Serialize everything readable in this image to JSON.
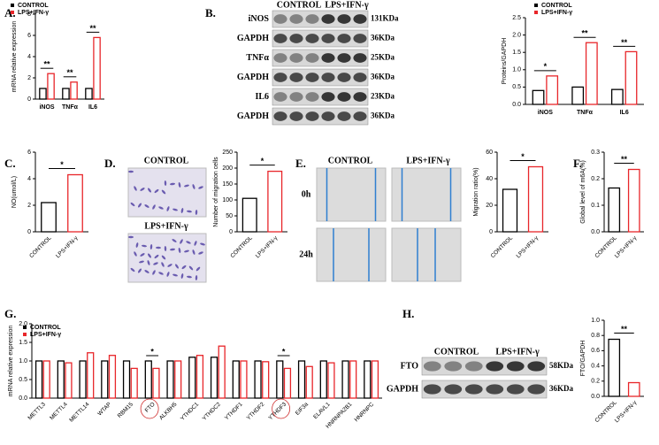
{
  "panel_labels": [
    "A.",
    "B.",
    "C.",
    "D.",
    "E.",
    "F.",
    "G.",
    "H."
  ],
  "blot_b": {
    "groups": [
      "CONTROL",
      "LPS+IFN-γ"
    ],
    "rows": [
      {
        "label": "iNOS",
        "size": "131KDa"
      },
      {
        "label": "GAPDH",
        "size": "36KDa"
      },
      {
        "label": "TNFα",
        "size": "25KDa"
      },
      {
        "label": "GAPDH",
        "size": "36KDa"
      },
      {
        "label": "IL6",
        "size": "23KDa"
      },
      {
        "label": "GAPDH",
        "size": "36KDa"
      }
    ]
  },
  "blot_h": {
    "groups": [
      "CONTROL",
      "LPS+IFN-γ"
    ],
    "rows": [
      {
        "label": "FTO",
        "size": "58KDa"
      },
      {
        "label": "GAPDH",
        "size": "36KDa"
      }
    ]
  },
  "images_d": {
    "rows": [
      "CONTROL",
      "LPS+IFN-γ"
    ]
  },
  "images_e": {
    "columns": [
      "CONTROL",
      "LPS+IFN-γ"
    ],
    "rows": [
      "0h",
      "24h"
    ]
  },
  "chart_data": [
    {
      "type": "bar",
      "y_label": "mRNA relative expression",
      "categories": [
        "iNOS",
        "TNFα",
        "IL6"
      ],
      "series": [
        {
          "name": "CONTROL",
          "color": "#000000",
          "values": [
            1,
            1,
            1
          ]
        },
        {
          "name": "LPS+IFN-γ",
          "color": "#e8262a",
          "values": [
            2.4,
            1.6,
            5.8
          ]
        }
      ],
      "significance": [
        "**",
        "**",
        "**"
      ],
      "ylim": [
        0,
        8
      ],
      "yticks": [
        0,
        2,
        4,
        6,
        8
      ]
    },
    {
      "type": "bar",
      "y_label": "Proteins/GAPDH",
      "categories": [
        "iNOS",
        "TNFα",
        "IL6"
      ],
      "series": [
        {
          "name": "CONTROL",
          "color": "#000000",
          "values": [
            0.4,
            0.5,
            0.43
          ]
        },
        {
          "name": "LPS+IFN-γ",
          "color": "#e8262a",
          "values": [
            0.82,
            1.78,
            1.52
          ]
        }
      ],
      "significance": [
        "*",
        "**",
        "**"
      ],
      "ylim": [
        0,
        2.5
      ],
      "yticks": [
        {
          "value": 0,
          "label": "0.0"
        },
        0.5,
        {
          "value": 1,
          "label": "1.0"
        },
        1.5,
        {
          "value": 2,
          "label": "2.0"
        },
        2.5
      ]
    },
    {
      "type": "bar",
      "y_label": "NO(umol/L)",
      "categories": [
        "CONTROL",
        "LPS+IFN-γ"
      ],
      "colors": [
        "#000000",
        "#e8262a"
      ],
      "values": [
        2.2,
        4.3
      ],
      "significance": "*",
      "ylim": [
        0,
        6
      ],
      "yticks": [
        0,
        2,
        4,
        6
      ]
    },
    {
      "type": "bar",
      "y_label": "Number of migration cells",
      "categories": [
        "CONTROL",
        "LPS+IFN-γ"
      ],
      "colors": [
        "#000000",
        "#e8262a"
      ],
      "values": [
        105,
        190
      ],
      "significance": "*",
      "ylim": [
        0,
        250
      ],
      "yticks": [
        0,
        50,
        100,
        150,
        200,
        250
      ]
    },
    {
      "type": "bar",
      "y_label": "Migration ratio(%)",
      "categories": [
        "CONTROL",
        "LPS+IFN-γ"
      ],
      "colors": [
        "#000000",
        "#e8262a"
      ],
      "values": [
        32,
        49
      ],
      "significance": "*",
      "ylim": [
        0,
        60
      ],
      "yticks": [
        0,
        20,
        40,
        60
      ]
    },
    {
      "type": "bar",
      "y_label": "Global level of m6A(%)",
      "categories": [
        "CONTROL",
        "LPS+IFN-γ"
      ],
      "colors": [
        "#000000",
        "#e8262a"
      ],
      "values": [
        0.165,
        0.235
      ],
      "significance": "**",
      "ylim": [
        0,
        0.3
      ],
      "yticks": [
        {
          "value": 0,
          "label": "0.0"
        },
        0.1,
        0.2,
        0.3
      ]
    },
    {
      "type": "bar",
      "y_label": "mRNA relative expression",
      "categories": [
        "METTL3",
        "METTL4",
        "METTL14",
        "WTAP",
        "RBM15",
        "FTO",
        "ALKBH5",
        "YTHDC1",
        "YTHDC2",
        "YTHDF1",
        "YTHDF2",
        "YTHDF3",
        "EIF3a",
        "ELAVL1",
        "HNRNPA2B1",
        "HNRNPC"
      ],
      "series": [
        {
          "name": "CONTROL",
          "color": "#000000",
          "values": [
            1,
            1,
            1,
            1,
            1,
            1,
            1,
            1.1,
            1.1,
            1,
            1,
            1,
            1,
            1,
            1,
            1
          ]
        },
        {
          "name": "LPS+IFN-γ",
          "color": "#e8262a",
          "values": [
            1,
            0.95,
            1.22,
            1.15,
            0.8,
            0.8,
            1.0,
            1.15,
            1.4,
            1.0,
            0.98,
            0.8,
            0.85,
            0.95,
            1.0,
            1.0
          ]
        }
      ],
      "significance": [
        null,
        null,
        null,
        null,
        null,
        "*",
        null,
        null,
        null,
        null,
        null,
        "*",
        null,
        null,
        null,
        null
      ],
      "ylim": [
        0,
        2
      ],
      "yticks": [
        {
          "value": 0,
          "label": "0.0"
        },
        0.5,
        {
          "value": 1,
          "label": "1.0"
        },
        1.5,
        {
          "value": 2,
          "label": "2.0"
        }
      ]
    },
    {
      "type": "bar",
      "y_label": "FTO/GAPDH",
      "categories": [
        "CONTROL",
        "LPS+IFN-γ"
      ],
      "colors": [
        "#000000",
        "#e8262a"
      ],
      "values": [
        0.75,
        0.18
      ],
      "significance": "**",
      "ylim": [
        0,
        1
      ],
      "yticks": [
        {
          "value": 0,
          "label": "0.0"
        },
        0.2,
        0.4,
        0.6,
        0.8,
        {
          "value": 1,
          "label": "1.0"
        }
      ]
    }
  ]
}
